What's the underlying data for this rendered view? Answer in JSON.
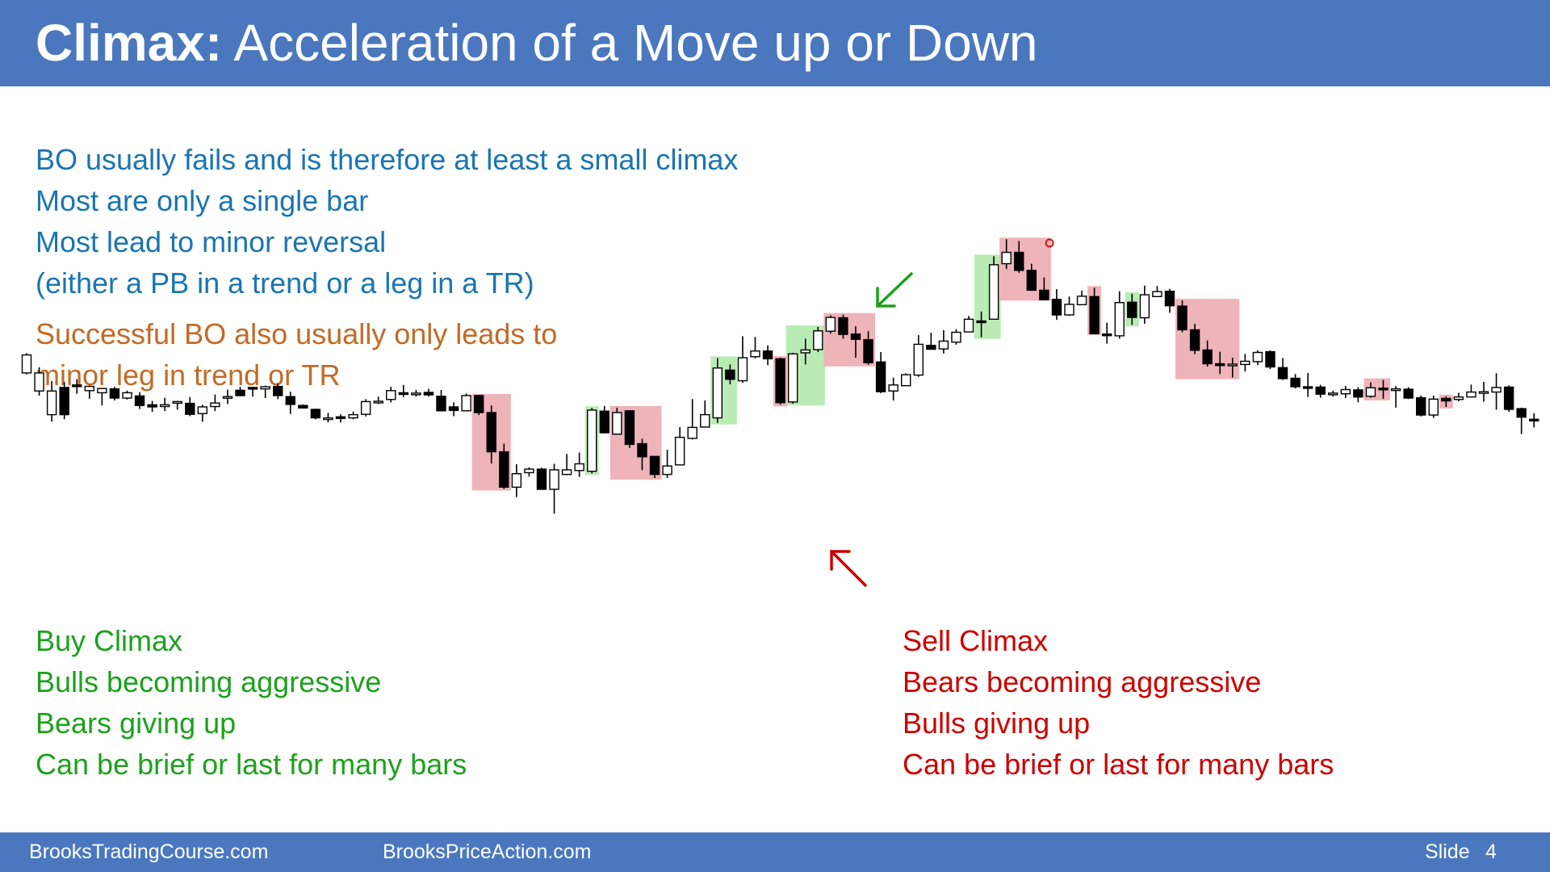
{
  "header": {
    "title_bold": "Climax:",
    "title_rest": "Acceleration of a Move up or Down"
  },
  "notes": {
    "blue": [
      "BO usually fails and is therefore at least a small climax",
      "Most are only a single bar",
      "Most lead to minor reversal",
      "(either a PB in a trend or a leg in a TR)"
    ],
    "orange": [
      "Successful BO also usually only leads to",
      "minor leg in trend or TR"
    ],
    "buy_climax": [
      "Buy Climax",
      "Bulls becoming aggressive",
      "Bears giving up",
      "Can be brief or last for many bars"
    ],
    "sell_climax": [
      "Sell Climax",
      "Bears becoming aggressive",
      "Bulls giving up",
      "Can be brief or last for many bars"
    ]
  },
  "footer": {
    "left": "BrooksTradingCourse.com",
    "middle": "BrooksPriceAction.com",
    "slide_label": "Slide",
    "slide_number": "4"
  },
  "colors": {
    "header_bg": "#4a77be",
    "blue_text": "#1a75b0",
    "orange_text": "#c26a26",
    "buy_green": "#1ca11c",
    "sell_red": "#cc0000",
    "buy_highlight": "#b9ecb4",
    "sell_highlight": "#efb3ba"
  },
  "chart_data": {
    "type": "candlestick",
    "series": [
      [
        93.4,
        98.5,
        93.0,
        99.0
      ],
      [
        88.3,
        93.4,
        87.0,
        95.0
      ],
      [
        81.6,
        88.3,
        79.6,
        91.1
      ],
      [
        89.3,
        81.6,
        80.3,
        90.8
      ],
      [
        90.0,
        89.6,
        87.5,
        91.6
      ],
      [
        88.4,
        89.6,
        86.1,
        89.9
      ],
      [
        87.8,
        89.0,
        84.2,
        89.2
      ],
      [
        88.9,
        86.3,
        85.6,
        89.5
      ],
      [
        86.3,
        87.8,
        85.9,
        88.4
      ],
      [
        86.9,
        84.2,
        83.2,
        88.0
      ],
      [
        84.4,
        83.8,
        82.4,
        85.5
      ],
      [
        83.9,
        84.4,
        82.6,
        86.4
      ],
      [
        85.1,
        85.3,
        83.0,
        85.5
      ],
      [
        84.8,
        81.7,
        81.2,
        86.6
      ],
      [
        81.9,
        83.8,
        79.6,
        84.4
      ],
      [
        83.9,
        84.9,
        82.6,
        87.3
      ],
      [
        86.4,
        86.7,
        84.6,
        88.7
      ],
      [
        88.5,
        87.0,
        86.8,
        89.5
      ],
      [
        89.3,
        89.1,
        86.7,
        89.3
      ],
      [
        88.9,
        89.5,
        86.3,
        89.8
      ],
      [
        89.6,
        87.0,
        86.0,
        90.5
      ],
      [
        86.7,
        84.5,
        81.8,
        88.1
      ],
      [
        84.2,
        83.5,
        83.4,
        84.5
      ],
      [
        83.1,
        80.7,
        80.3,
        83.3
      ],
      [
        80.4,
        80.7,
        79.4,
        82.1
      ],
      [
        81.0,
        80.8,
        79.4,
        81.7
      ],
      [
        80.7,
        81.6,
        80.3,
        82.5
      ],
      [
        81.7,
        85.3,
        81.1,
        86.0
      ],
      [
        85.3,
        85.4,
        84.6,
        86.7
      ],
      [
        85.9,
        88.4,
        85.1,
        89.5
      ],
      [
        87.8,
        87.6,
        86.6,
        90.0
      ],
      [
        87.6,
        87.7,
        86.7,
        88.6
      ],
      [
        87.9,
        87.2,
        86.7,
        88.9
      ],
      [
        86.8,
        82.7,
        82.7,
        88.6
      ],
      [
        83.8,
        82.8,
        81.2,
        85.1
      ],
      [
        82.7,
        87.0,
        82.6,
        87.6
      ],
      [
        87.0,
        82.2,
        81.5,
        87.0
      ],
      [
        82.2,
        71.1,
        67.8,
        84.2
      ],
      [
        71.1,
        61.1,
        60.6,
        73.4
      ],
      [
        61.1,
        64.9,
        58.3,
        67.6
      ],
      [
        65.2,
        66.2,
        64.1,
        66.7
      ],
      [
        66.2,
        60.5,
        60.5,
        66.6
      ],
      [
        60.5,
        66.0,
        53.6,
        67.7
      ],
      [
        64.7,
        66.0,
        64.5,
        70.5
      ],
      [
        65.8,
        67.7,
        64.0,
        70.9
      ],
      [
        65.6,
        82.9,
        65.0,
        83.5
      ],
      [
        82.6,
        76.5,
        76.3,
        84.1
      ],
      [
        76.1,
        82.2,
        76.5,
        83.6
      ],
      [
        82.7,
        73.2,
        72.2,
        82.6
      ],
      [
        73.4,
        69.7,
        65.9,
        74.8
      ],
      [
        69.8,
        64.7,
        63.7,
        69.9
      ],
      [
        64.7,
        67.1,
        63.7,
        71.7
      ],
      [
        67.4,
        75.2,
        67.8,
        78.1
      ],
      [
        74.9,
        78.0,
        74.6,
        86.0
      ],
      [
        78.1,
        81.6,
        78.1,
        85.6
      ],
      [
        80.7,
        94.8,
        79.3,
        97.6
      ],
      [
        94.2,
        91.6,
        90.2,
        95.8
      ],
      [
        91.2,
        97.7,
        90.6,
        103.8
      ],
      [
        98.0,
        99.6,
        97.5,
        103.6
      ],
      [
        99.6,
        97.4,
        95.6,
        101.2
      ],
      [
        97.4,
        85.0,
        84.4,
        97.7
      ],
      [
        85.2,
        98.8,
        84.7,
        99.1
      ],
      [
        99.1,
        99.9,
        95.8,
        103.1
      ],
      [
        100.0,
        105.3,
        99.3,
        106.4
      ],
      [
        105.2,
        109.1,
        104.5,
        109.7
      ],
      [
        109.0,
        104.3,
        103.1,
        109.9
      ],
      [
        104.4,
        102.9,
        97.7,
        106.6
      ],
      [
        102.8,
        96.3,
        95.7,
        105.2
      ],
      [
        96.5,
        88.1,
        87.7,
        99.3
      ],
      [
        88.3,
        90.0,
        85.6,
        92.1
      ],
      [
        89.8,
        92.9,
        91.7,
        93.3
      ],
      [
        92.8,
        101.5,
        92.3,
        104.1
      ],
      [
        101.2,
        100.1,
        100.4,
        104.8
      ],
      [
        100.2,
        102.4,
        98.9,
        105.5
      ],
      [
        102.1,
        104.9,
        101.4,
        105.8
      ],
      [
        105.0,
        108.6,
        107.0,
        109.5
      ],
      [
        108.1,
        108.0,
        103.5,
        110.8
      ],
      [
        108.6,
        124.0,
        108.6,
        126.4
      ],
      [
        124.3,
        127.5,
        122.8,
        131.2
      ],
      [
        127.5,
        122.4,
        121.7,
        130.7
      ],
      [
        122.4,
        116.8,
        116.6,
        124.3
      ],
      [
        116.8,
        114.1,
        114.3,
        120.4
      ],
      [
        114.2,
        109.8,
        108.4,
        117.1
      ],
      [
        109.8,
        112.8,
        109.6,
        115.0
      ],
      [
        112.7,
        115.1,
        112.7,
        116.7
      ],
      [
        115.0,
        104.5,
        104.6,
        117.5
      ],
      [
        104.4,
        104.0,
        101.7,
        107.6
      ],
      [
        103.9,
        113.3,
        103.1,
        116.5
      ],
      [
        113.4,
        109.1,
        107.0,
        115.8
      ],
      [
        109.0,
        115.5,
        107.3,
        118.1
      ],
      [
        115.0,
        116.4,
        115.0,
        118.0
      ],
      [
        116.5,
        112.4,
        110.4,
        117.2
      ],
      [
        112.3,
        105.6,
        104.9,
        113.9
      ],
      [
        105.6,
        99.8,
        98.7,
        107.3
      ],
      [
        99.9,
        96.0,
        95.2,
        102.6
      ],
      [
        96.0,
        95.5,
        93.1,
        99.4
      ],
      [
        95.6,
        95.9,
        92.1,
        97.7
      ],
      [
        95.8,
        96.7,
        93.8,
        98.8
      ],
      [
        96.6,
        99.2,
        95.6,
        99.8
      ],
      [
        99.4,
        95.1,
        94.5,
        99.8
      ],
      [
        94.9,
        91.8,
        91.4,
        97.6
      ],
      [
        91.9,
        89.5,
        89.0,
        93.1
      ],
      [
        89.5,
        89.4,
        86.6,
        93.4
      ],
      [
        89.4,
        87.4,
        86.4,
        90.0
      ],
      [
        87.5,
        87.7,
        86.7,
        88.4
      ],
      [
        87.5,
        88.7,
        86.3,
        89.7
      ],
      [
        88.6,
        86.6,
        85.1,
        89.4
      ],
      [
        86.8,
        89.2,
        86.4,
        90.7
      ],
      [
        89.1,
        89.0,
        86.1,
        91.4
      ],
      [
        88.8,
        88.9,
        83.6,
        89.7
      ],
      [
        88.8,
        86.3,
        86.0,
        89.4
      ],
      [
        86.4,
        81.5,
        81.1,
        87.0
      ],
      [
        81.5,
        86.0,
        80.7,
        87.0
      ],
      [
        86.2,
        85.5,
        83.8,
        86.8
      ],
      [
        85.9,
        86.6,
        85.4,
        87.8
      ],
      [
        86.6,
        88.0,
        86.6,
        90.1
      ],
      [
        88.0,
        88.1,
        85.3,
        90.9
      ],
      [
        88.0,
        89.3,
        83.0,
        93.3
      ],
      [
        89.4,
        83.1,
        82.4,
        89.9
      ],
      [
        83.3,
        80.9,
        76.1,
        83.6
      ],
      [
        80.3,
        80.1,
        78.0,
        82.0
      ]
    ],
    "buy_climax_highlights": [
      [
        45,
        45
      ],
      [
        55,
        56
      ],
      [
        61,
        63
      ],
      [
        76,
        77
      ],
      [
        88,
        88
      ]
    ],
    "sell_climax_highlights": [
      [
        36,
        38
      ],
      [
        47,
        50
      ],
      [
        60,
        60
      ],
      [
        64,
        67
      ],
      [
        78,
        81
      ],
      [
        85,
        85
      ],
      [
        92,
        96
      ],
      [
        107,
        108
      ],
      [
        113,
        113
      ]
    ],
    "annotations": [
      "green-arrow-down-left",
      "red-arrow-up-left",
      "red-circle-marker"
    ]
  }
}
